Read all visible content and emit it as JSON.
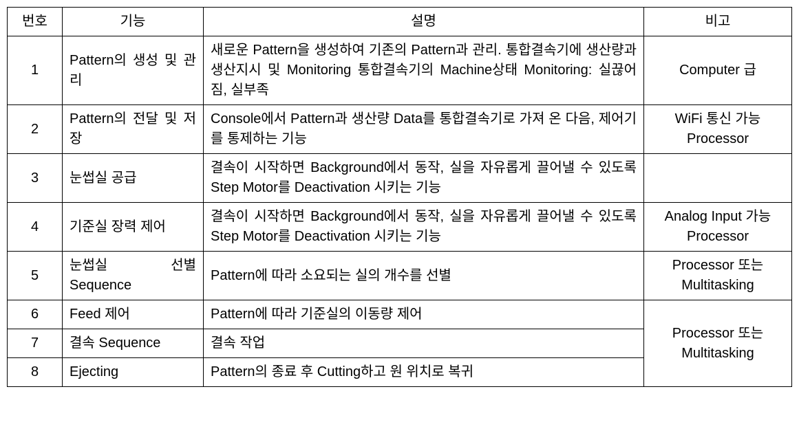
{
  "table": {
    "columns": {
      "num": "번호",
      "func": "기능",
      "desc": "설명",
      "note": "비고"
    },
    "rows": [
      {
        "num": "1",
        "func": "Pattern의 생성 및 관리",
        "desc": "새로운 Pattern을 생성하여 기존의 Pattern과 관리. 통합결속기에 생산량과 생산지시 및 Monitoring 통합결속기의 Machine상태 Monitoring: 실끊어짐, 실부족",
        "note": "Computer 급"
      },
      {
        "num": "2",
        "func": "Pattern의 전달 및 저장",
        "desc": "Console에서 Pattern과 생산량 Data를 통합결속기로 가져 온 다음, 제어기를 통제하는 기능",
        "note": "WiFi 통신 가능 Processor"
      },
      {
        "num": "3",
        "func": "눈썹실 공급",
        "desc": "결속이 시작하면 Background에서 동작, 실을 자유롭게 끌어낼 수 있도록 Step Motor를 Deactivation 시키는 기능",
        "note": ""
      },
      {
        "num": "4",
        "func": "기준실 장력 제어",
        "desc": "결속이 시작하면 Background에서 동작, 실을 자유롭게 끌어낼 수 있도록 Step Motor를 Deactivation 시키는 기능",
        "note": "Analog Input 가능 Processor"
      },
      {
        "num": "5",
        "func": "눈썹실 선별 Sequence",
        "desc": "Pattern에 따라 소요되는 실의 개수를 선별",
        "note": "Processor 또는 Multitasking"
      },
      {
        "num": "6",
        "func": "Feed 제어",
        "desc": "Pattern에 따라 기준실의 이동량 제어",
        "note_merged": "Processor 또는 Multitasking",
        "note_rowspan": 3
      },
      {
        "num": "7",
        "func": "결속 Sequence",
        "desc": "결속 작업"
      },
      {
        "num": "8",
        "func": "Ejecting",
        "desc": "Pattern의 종료 후 Cutting하고 원 위치로 복귀"
      }
    ]
  }
}
